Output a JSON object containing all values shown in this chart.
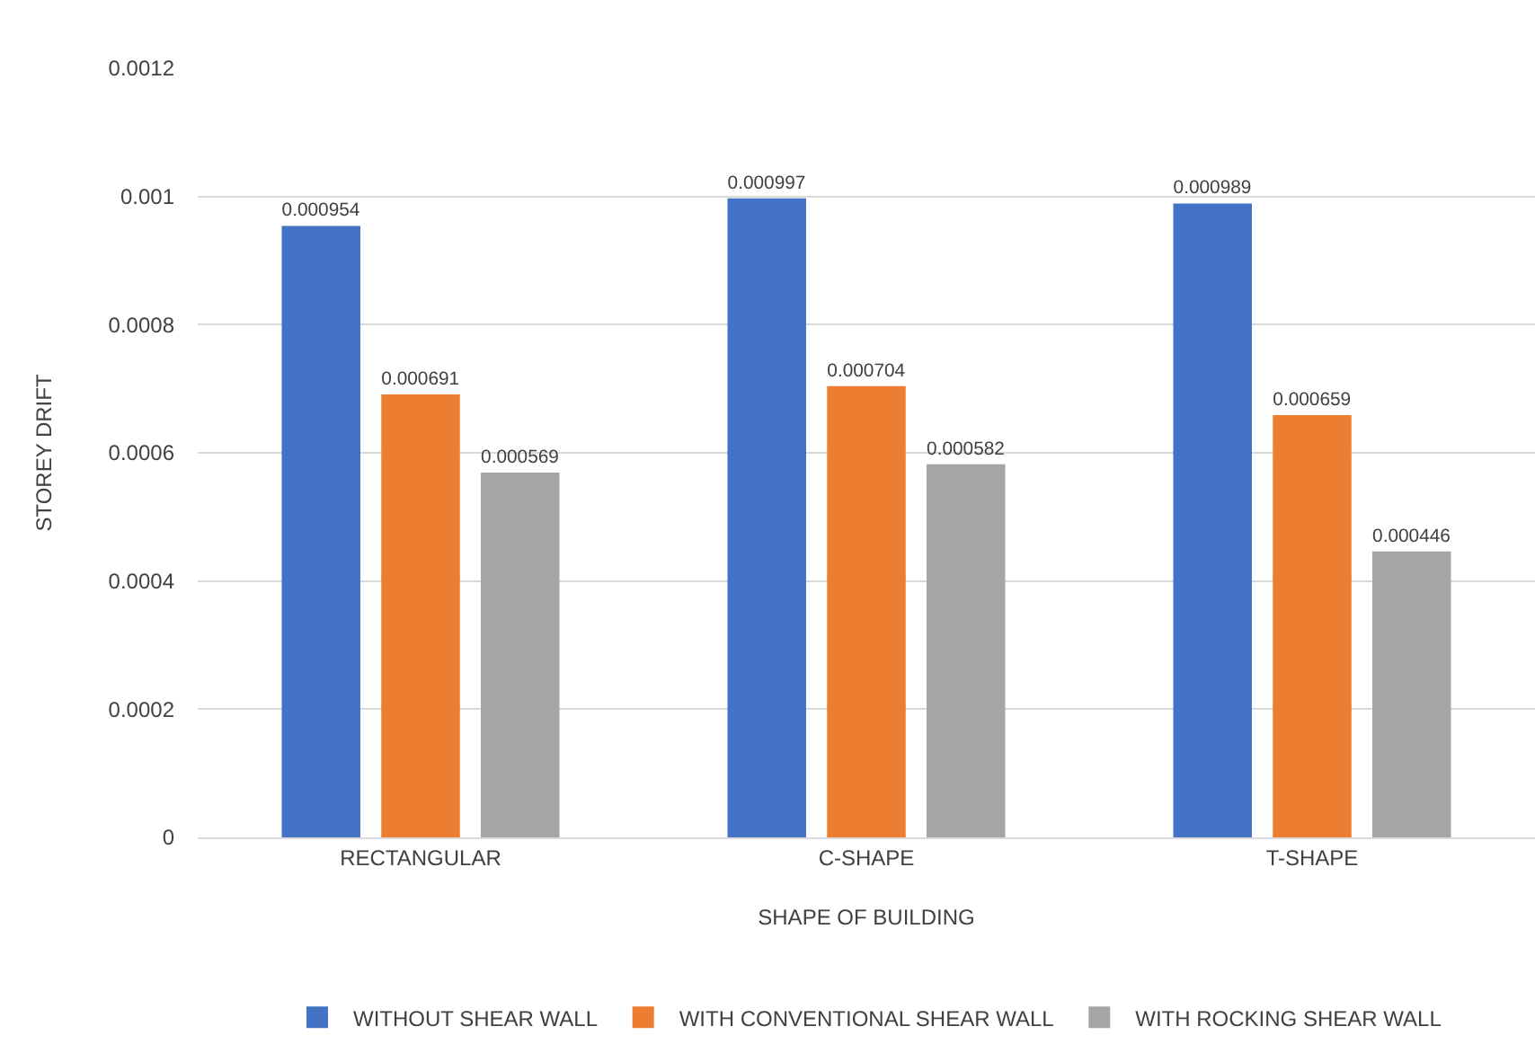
{
  "chart_data": {
    "type": "bar",
    "xlabel": "SHAPE OF BUILDING",
    "ylabel": "STOREY DRIFT",
    "categories": [
      "RECTANGULAR",
      "C-SHAPE",
      "T-SHAPE"
    ],
    "series": [
      {
        "name": "WITHOUT SHEAR WALL",
        "color": "#4472c4",
        "values": [
          0.000954,
          0.000997,
          0.000989
        ]
      },
      {
        "name": "WITH CONVENTIONAL SHEAR WALL",
        "color": "#ed7d31",
        "values": [
          0.000691,
          0.000704,
          0.000659
        ]
      },
      {
        "name": "WITH ROCKING SHEAR WALL",
        "color": "#a5a5a5",
        "values": [
          0.000569,
          0.000582,
          0.000446
        ]
      }
    ],
    "ylim": [
      0,
      0.0012
    ],
    "yticks": [
      0,
      0.0002,
      0.0004,
      0.0006,
      0.0008,
      0.001,
      0.0012
    ],
    "data_labels": true,
    "grid": "y",
    "legend": "bottom"
  }
}
